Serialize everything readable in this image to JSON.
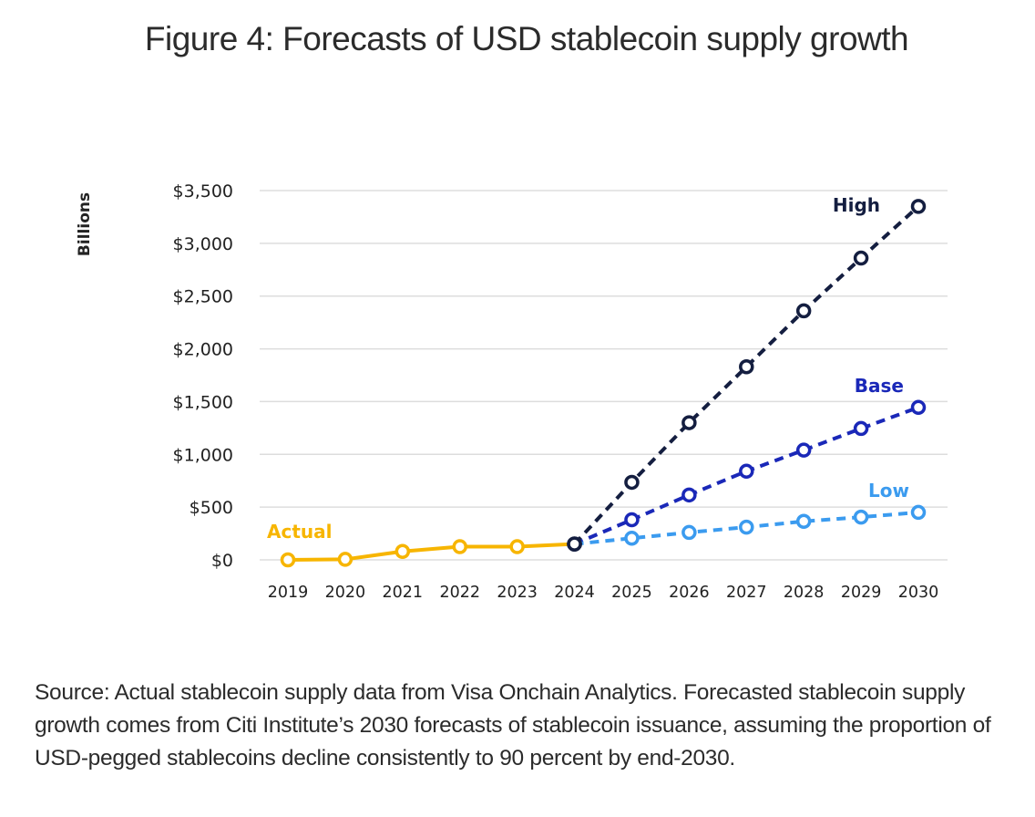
{
  "figure": {
    "title": "Figure 4: Forecasts of USD stablecoin supply growth",
    "caption": "Source: Actual stablecoin supply data from Visa Onchain Analytics. Forecasted stablecoin supply growth comes from Citi Institute’s 2030 forecasts of stablecoin issuance, assuming the proportion of USD-pegged stablecoins decline consistently to 90 percent by end-2030."
  },
  "chart_data": {
    "type": "line",
    "title": "Figure 4: Forecasts of USD stablecoin supply growth",
    "xlabel": "",
    "ylabel": "Billions",
    "x": [
      2019,
      2020,
      2021,
      2022,
      2023,
      2024,
      2025,
      2026,
      2027,
      2028,
      2029,
      2030
    ],
    "x_tick_labels": [
      "2019",
      "2020",
      "2021",
      "2022",
      "2023",
      "2024",
      "2025",
      "2026",
      "2027",
      "2028",
      "2029",
      "2030"
    ],
    "ylim": [
      0,
      3500
    ],
    "y_ticks": [
      0,
      500,
      1000,
      1500,
      2000,
      2500,
      3000,
      3500
    ],
    "y_tick_labels": [
      "$0",
      "$500",
      "$1,000",
      "$1,500",
      "$2,000",
      "$2,500",
      "$3,000",
      "$3,500"
    ],
    "grid": "horizontal",
    "legend": "inline labels near series",
    "series": [
      {
        "name": "Actual",
        "label": "Actual",
        "color": "#F7B500",
        "style": "solid",
        "x": [
          2019,
          2020,
          2021,
          2022,
          2023,
          2024
        ],
        "values": [
          0,
          5,
          80,
          125,
          125,
          150
        ]
      },
      {
        "name": "High",
        "label": "High",
        "color": "#141E40",
        "style": "dashed",
        "x": [
          2024,
          2025,
          2026,
          2027,
          2028,
          2029,
          2030
        ],
        "values": [
          150,
          735,
          1300,
          1830,
          2360,
          2860,
          3350
        ]
      },
      {
        "name": "Base",
        "label": "Base",
        "color": "#1A28B8",
        "style": "dashed",
        "x": [
          2024,
          2025,
          2026,
          2027,
          2028,
          2029,
          2030
        ],
        "values": [
          150,
          380,
          615,
          840,
          1040,
          1245,
          1445
        ]
      },
      {
        "name": "Low",
        "label": "Low",
        "color": "#3B9BEF",
        "style": "dashed",
        "x": [
          2024,
          2025,
          2026,
          2027,
          2028,
          2029,
          2030
        ],
        "values": [
          150,
          205,
          260,
          310,
          365,
          405,
          450
        ]
      }
    ]
  }
}
